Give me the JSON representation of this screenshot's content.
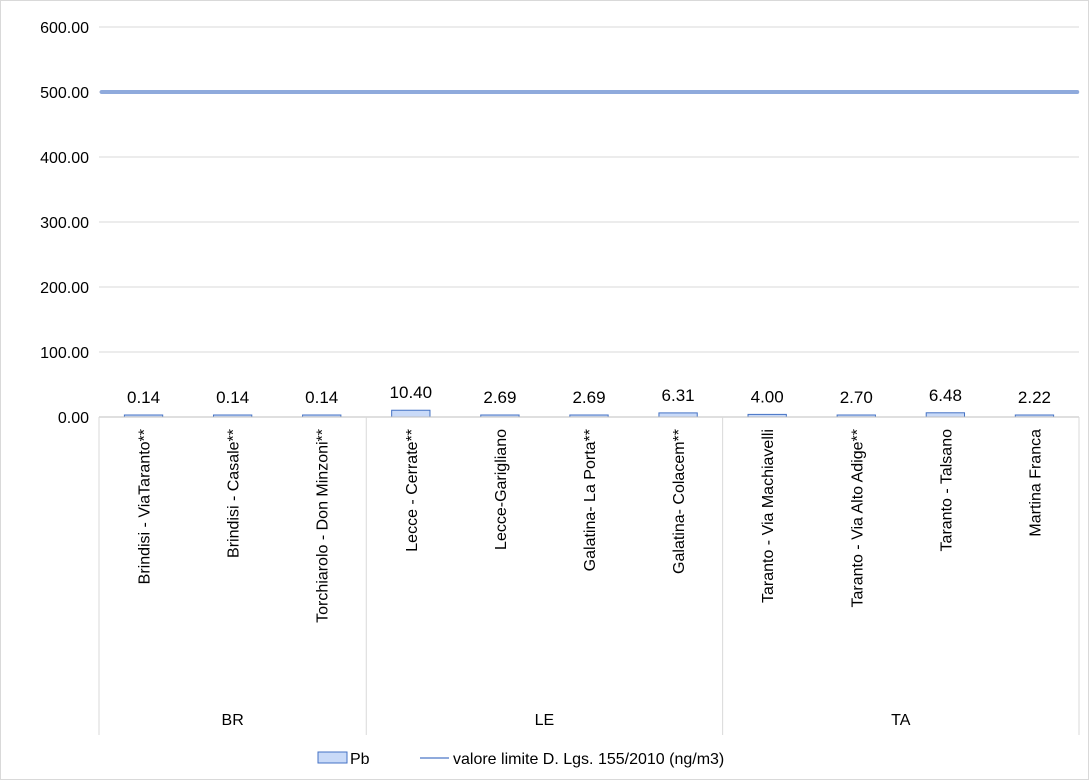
{
  "chart_data": {
    "type": "bar",
    "categories": [
      "Brindisi - ViaTaranto**",
      "Brindisi - Casale**",
      "Torchiarolo - Don Minzoni**",
      "Lecce - Cerrate**",
      "Lecce-Garigliano",
      "Galatina- La Porta**",
      "Galatina- Colacem**",
      "Taranto - Via Machiavelli",
      "Taranto - Via Alto Adige**",
      "Taranto - Talsano",
      "Martina Franca"
    ],
    "groups": [
      {
        "label": "BR",
        "count": 3
      },
      {
        "label": "LE",
        "count": 4
      },
      {
        "label": "TA",
        "count": 4
      }
    ],
    "series": [
      {
        "name": "Pb",
        "type": "bar",
        "values": [
          0.14,
          0.14,
          0.14,
          10.4,
          2.69,
          2.69,
          6.31,
          4.0,
          2.7,
          6.48,
          2.22
        ],
        "labels": [
          "0.14",
          "0.14",
          "0.14",
          "10.40",
          "2.69",
          "2.69",
          "6.31",
          "4.00",
          "2.70",
          "6.48",
          "2.22"
        ],
        "color": "#c9daf8",
        "border": "#4472c4"
      },
      {
        "name": "valore limite D. Lgs. 155/2010 (ng/m3)",
        "type": "line",
        "values": [
          500,
          500,
          500,
          500,
          500,
          500,
          500,
          500,
          500,
          500,
          500
        ],
        "color": "#8faadc"
      }
    ],
    "ylim": [
      0,
      600
    ],
    "yticks": [
      0,
      100,
      200,
      300,
      400,
      500,
      600
    ],
    "ytick_labels": [
      "0.00",
      "100.00",
      "200.00",
      "300.00",
      "400.00",
      "500.00",
      "600.00"
    ],
    "grid": true,
    "legend": "bottom",
    "title": "",
    "xlabel": "",
    "ylabel": ""
  }
}
